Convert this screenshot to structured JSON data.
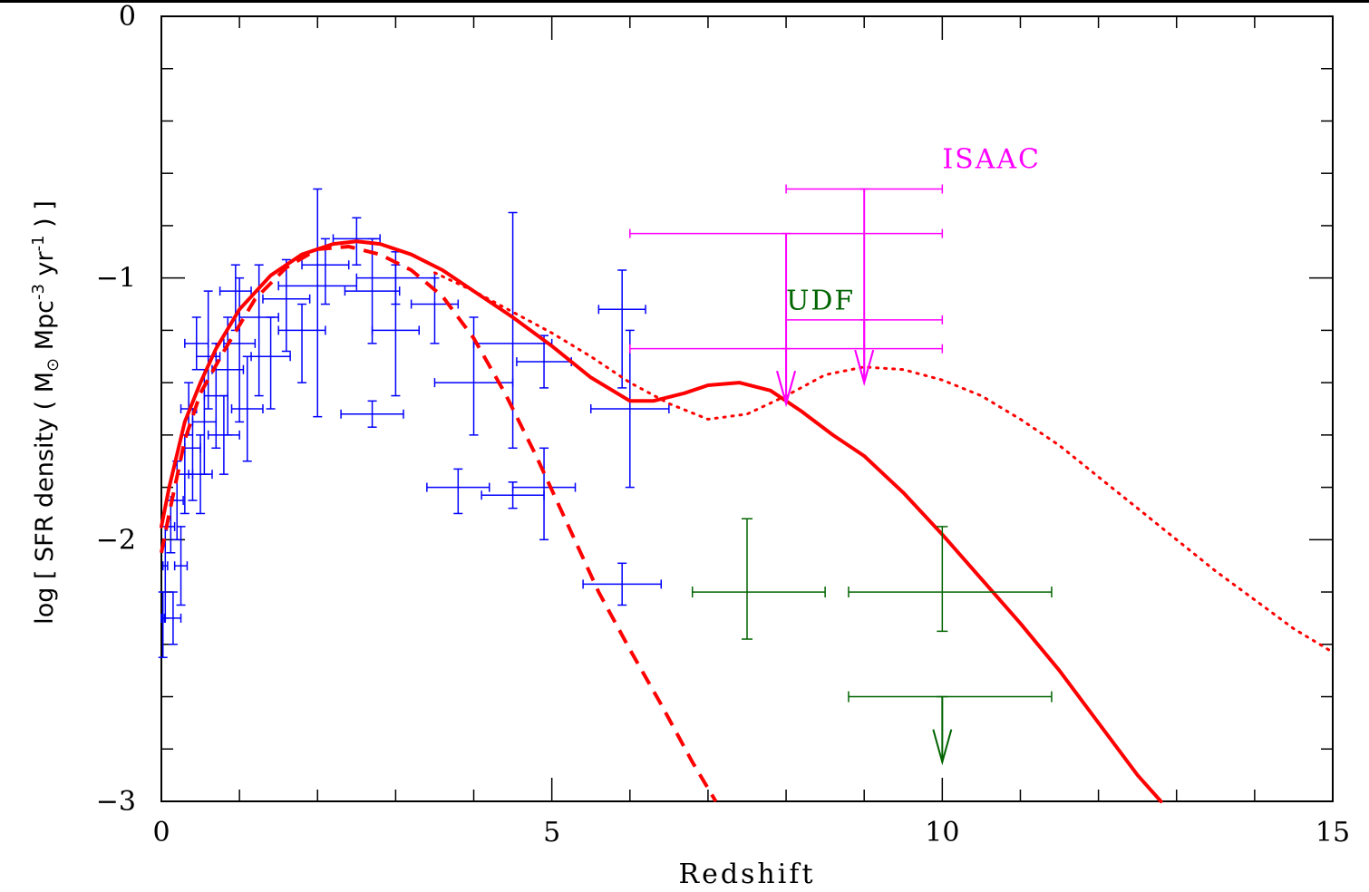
{
  "chart_data": {
    "type": "scatter",
    "xlabel": "Redshift",
    "ylabel": {
      "part1": "log [ SFR density ( M",
      "sub": "⊙",
      "part2": " Mpc",
      "sup1": "-3",
      "part3": " yr",
      "sup2": "-1",
      "part4": " ) ]"
    },
    "xlim": [
      0,
      15
    ],
    "ylim": [
      -3,
      0
    ],
    "xticks": [
      0,
      5,
      10,
      15
    ],
    "yticks": [
      {
        "value": 0,
        "label": "0"
      },
      {
        "value": -1,
        "label": "−1"
      },
      {
        "value": -2,
        "label": "−2"
      },
      {
        "value": -3,
        "label": "−3"
      }
    ],
    "annotations": [
      {
        "text": "ISAAC",
        "x": 10.0,
        "y": -0.58,
        "color": "#ff00ff"
      },
      {
        "text": "UDF",
        "x": 8.0,
        "y": -1.12,
        "color": "#006400"
      }
    ],
    "curves": [
      {
        "style": "solid",
        "color": "#ff0000",
        "points": [
          [
            0,
            -1.95
          ],
          [
            0.1,
            -1.8
          ],
          [
            0.3,
            -1.55
          ],
          [
            0.5,
            -1.4
          ],
          [
            0.7,
            -1.27
          ],
          [
            1.0,
            -1.12
          ],
          [
            1.4,
            -0.99
          ],
          [
            1.8,
            -0.91
          ],
          [
            2.2,
            -0.87
          ],
          [
            2.5,
            -0.86
          ],
          [
            2.8,
            -0.87
          ],
          [
            3.2,
            -0.91
          ],
          [
            3.6,
            -0.97
          ],
          [
            4.0,
            -1.05
          ],
          [
            4.5,
            -1.15
          ],
          [
            5.0,
            -1.26
          ],
          [
            5.5,
            -1.38
          ],
          [
            6.0,
            -1.47
          ],
          [
            6.3,
            -1.47
          ],
          [
            6.7,
            -1.44
          ],
          [
            7.0,
            -1.41
          ],
          [
            7.4,
            -1.4
          ],
          [
            7.8,
            -1.43
          ],
          [
            8.2,
            -1.51
          ],
          [
            8.6,
            -1.6
          ],
          [
            9.0,
            -1.68
          ],
          [
            9.5,
            -1.82
          ],
          [
            10.0,
            -1.98
          ],
          [
            10.5,
            -2.15
          ],
          [
            11.0,
            -2.32
          ],
          [
            11.5,
            -2.5
          ],
          [
            12.0,
            -2.7
          ],
          [
            12.5,
            -2.9
          ],
          [
            12.8,
            -3.02
          ]
        ]
      },
      {
        "style": "dotted",
        "color": "#ff0000",
        "points": [
          [
            3.5,
            -0.98
          ],
          [
            4.0,
            -1.05
          ],
          [
            4.5,
            -1.13
          ],
          [
            5.0,
            -1.21
          ],
          [
            5.5,
            -1.3
          ],
          [
            6.0,
            -1.4
          ],
          [
            6.5,
            -1.48
          ],
          [
            7.0,
            -1.54
          ],
          [
            7.5,
            -1.52
          ],
          [
            8.0,
            -1.45
          ],
          [
            8.5,
            -1.37
          ],
          [
            9.0,
            -1.34
          ],
          [
            9.5,
            -1.35
          ],
          [
            10.0,
            -1.39
          ],
          [
            10.5,
            -1.45
          ],
          [
            11.0,
            -1.54
          ],
          [
            11.5,
            -1.64
          ],
          [
            12.0,
            -1.76
          ],
          [
            12.5,
            -1.88
          ],
          [
            13.0,
            -2.0
          ],
          [
            13.5,
            -2.12
          ],
          [
            14.0,
            -2.23
          ],
          [
            14.5,
            -2.34
          ],
          [
            15.0,
            -2.43
          ]
        ]
      },
      {
        "style": "dashed",
        "color": "#ff0000",
        "points": [
          [
            0,
            -2.05
          ],
          [
            0.1,
            -1.9
          ],
          [
            0.3,
            -1.62
          ],
          [
            0.5,
            -1.44
          ],
          [
            0.8,
            -1.28
          ],
          [
            1.2,
            -1.08
          ],
          [
            1.6,
            -0.96
          ],
          [
            2.0,
            -0.89
          ],
          [
            2.4,
            -0.88
          ],
          [
            2.8,
            -0.91
          ],
          [
            3.2,
            -0.97
          ],
          [
            3.6,
            -1.07
          ],
          [
            4.0,
            -1.23
          ],
          [
            4.4,
            -1.44
          ],
          [
            4.8,
            -1.68
          ],
          [
            5.2,
            -1.94
          ],
          [
            5.6,
            -2.2
          ],
          [
            6.0,
            -2.42
          ],
          [
            6.4,
            -2.63
          ],
          [
            6.8,
            -2.85
          ],
          [
            7.1,
            -3.02
          ]
        ]
      }
    ],
    "isaac_points": [
      {
        "x": 8.0,
        "xlo": 6.0,
        "xhi": 10.0,
        "y": -0.83,
        "ylo": -1.48
      },
      {
        "x": 9.0,
        "xlo": 8.0,
        "xhi": 10.0,
        "y": -0.66,
        "ylo": -1.4
      },
      {
        "x": 8.0,
        "xlo": 6.0,
        "xhi": 10.0,
        "y": -1.27,
        "ylo": -1.48
      },
      {
        "x": 9.0,
        "xlo": 8.0,
        "xhi": 10.0,
        "y": -1.16,
        "ylo": -1.4
      }
    ],
    "udf_points": [
      {
        "x": 7.5,
        "xlo": 6.8,
        "xhi": 8.5,
        "y": -2.2,
        "yhi": -1.92,
        "ylo": -2.38
      },
      {
        "x": 10.0,
        "xlo": 8.8,
        "xhi": 11.4,
        "y": -2.2,
        "yhi": -1.95,
        "ylo": -2.35
      }
    ],
    "udf_upper_limit": {
      "x": 10.0,
      "xlo": 8.8,
      "xhi": 11.4,
      "y": -2.6,
      "ytip": -2.85
    },
    "blue_points": [
      {
        "x": 2.0,
        "y": -1.03,
        "xe": 0.5,
        "yhi": 0.37,
        "ylo": 0.5
      },
      {
        "x": 2.7,
        "y": -1.05,
        "xe": 0.35,
        "yhi": 0.2,
        "ylo": 0.2
      },
      {
        "x": 3.0,
        "y": -1.2,
        "xe": 0.3,
        "yhi": 0.25,
        "ylo": 0.25
      },
      {
        "x": 4.5,
        "y": -1.25,
        "xe": 0.5,
        "yhi": 0.5,
        "ylo": 0.4
      },
      {
        "x": 5.9,
        "y": -1.12,
        "xe": 0.3,
        "yhi": 0.15,
        "ylo": 0.3
      },
      {
        "x": 6.0,
        "y": -1.5,
        "xe": 0.5,
        "yhi": 0.3,
        "ylo": 0.3
      },
      {
        "x": 2.7,
        "y": -1.52,
        "xe": 0.4,
        "yhi": 0.05,
        "ylo": 0.05
      },
      {
        "x": 3.8,
        "y": -1.8,
        "xe": 0.4,
        "yhi": 0.07,
        "ylo": 0.1
      },
      {
        "x": 4.5,
        "y": -1.83,
        "xe": 0.4,
        "yhi": 0.05,
        "ylo": 0.05
      },
      {
        "x": 4.9,
        "y": -1.8,
        "xe": 0.4,
        "yhi": 0.15,
        "ylo": 0.2
      },
      {
        "x": 5.9,
        "y": -2.17,
        "xe": 0.5,
        "yhi": 0.08,
        "ylo": 0.08
      },
      {
        "x": 4.9,
        "y": -1.32,
        "xe": 0.35,
        "yhi": 0.1,
        "ylo": 0.1
      },
      {
        "x": 4.0,
        "y": -1.4,
        "xe": 0.5,
        "yhi": 0.25,
        "ylo": 0.2
      },
      {
        "x": 3.0,
        "y": -1.0,
        "xe": 0.5,
        "yhi": 0.1,
        "ylo": 0.1
      },
      {
        "x": 2.1,
        "y": -0.95,
        "xe": 0.3,
        "yhi": 0.1,
        "ylo": 0.15
      },
      {
        "x": 1.6,
        "y": -1.08,
        "xe": 0.3,
        "yhi": 0.15,
        "ylo": 0.2
      },
      {
        "x": 1.25,
        "y": -1.15,
        "xe": 0.25,
        "yhi": 0.2,
        "ylo": 0.3
      },
      {
        "x": 1.0,
        "y": -1.25,
        "xe": 0.2,
        "yhi": 0.25,
        "ylo": 0.3
      },
      {
        "x": 0.85,
        "y": -1.35,
        "xe": 0.2,
        "yhi": 0.2,
        "ylo": 0.25
      },
      {
        "x": 0.7,
        "y": -1.45,
        "xe": 0.15,
        "yhi": 0.2,
        "ylo": 0.2
      },
      {
        "x": 0.55,
        "y": -1.55,
        "xe": 0.15,
        "yhi": 0.2,
        "ylo": 0.2
      },
      {
        "x": 0.4,
        "y": -1.65,
        "xe": 0.1,
        "yhi": 0.15,
        "ylo": 0.2
      },
      {
        "x": 0.3,
        "y": -1.75,
        "xe": 0.1,
        "yhi": 0.15,
        "ylo": 0.15
      },
      {
        "x": 0.2,
        "y": -1.85,
        "xe": 0.08,
        "yhi": 0.15,
        "ylo": 0.15
      },
      {
        "x": 0.12,
        "y": -1.95,
        "xe": 0.05,
        "yhi": 0.1,
        "ylo": 0.1
      },
      {
        "x": 0.05,
        "y": -2.1,
        "xe": 0.03,
        "yhi": 0.15,
        "ylo": 0.2
      },
      {
        "x": 0.02,
        "y": -2.3,
        "xe": 0.02,
        "yhi": 0.1,
        "ylo": 0.15
      },
      {
        "x": 0.6,
        "y": -1.3,
        "xe": 0.15,
        "yhi": 0.25,
        "ylo": 0.2
      },
      {
        "x": 0.95,
        "y": -1.05,
        "xe": 0.2,
        "yhi": 0.1,
        "ylo": 0.15
      },
      {
        "x": 1.4,
        "y": -1.3,
        "xe": 0.25,
        "yhi": 0.15,
        "ylo": 0.2
      },
      {
        "x": 0.5,
        "y": -1.75,
        "xe": 0.15,
        "yhi": 0.15,
        "ylo": 0.15
      },
      {
        "x": 0.35,
        "y": -1.5,
        "xe": 0.1,
        "yhi": 0.1,
        "ylo": 0.1
      },
      {
        "x": 0.25,
        "y": -2.1,
        "xe": 0.08,
        "yhi": 0.15,
        "ylo": 0.15
      },
      {
        "x": 0.15,
        "y": -2.3,
        "xe": 0.1,
        "yhi": 0.1,
        "ylo": 0.1
      },
      {
        "x": 0.8,
        "y": -1.6,
        "xe": 0.2,
        "yhi": 0.15,
        "ylo": 0.15
      },
      {
        "x": 1.1,
        "y": -1.5,
        "xe": 0.2,
        "yhi": 0.2,
        "ylo": 0.2
      },
      {
        "x": 2.5,
        "y": -0.85,
        "xe": 0.3,
        "yhi": 0.08,
        "ylo": 0.1
      },
      {
        "x": 3.5,
        "y": -1.1,
        "xe": 0.3,
        "yhi": 0.1,
        "ylo": 0.15
      },
      {
        "x": 0.45,
        "y": -1.25,
        "xe": 0.15,
        "yhi": 0.1,
        "ylo": 0.1
      },
      {
        "x": 1.8,
        "y": -1.2,
        "xe": 0.3,
        "yhi": 0.1,
        "ylo": 0.2
      }
    ]
  }
}
